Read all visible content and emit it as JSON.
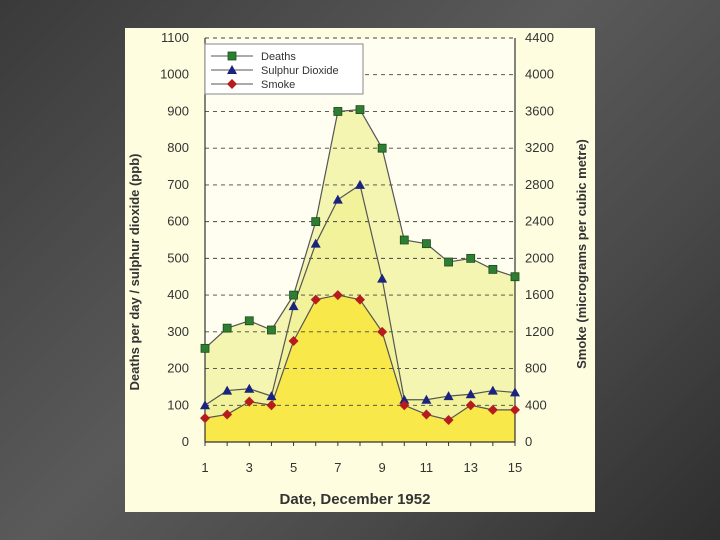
{
  "chart_data": {
    "type": "line",
    "title": "",
    "xlabel": "Date, December 1952",
    "ylabel_left": "Deaths per day / sulphur dioxide (ppb)",
    "ylabel_right": "Smoke (micrograms per cubic metre)",
    "x": [
      1,
      2,
      3,
      4,
      5,
      6,
      7,
      8,
      9,
      10,
      11,
      12,
      13,
      14,
      15
    ],
    "x_tick_labels": [
      "1",
      "3",
      "5",
      "7",
      "9",
      "11",
      "13",
      "15"
    ],
    "x_tick_values": [
      1,
      3,
      5,
      7,
      9,
      11,
      13,
      15
    ],
    "xlim": [
      1,
      15
    ],
    "ylim_left": [
      0,
      1100
    ],
    "ylim_right": [
      0,
      4400
    ],
    "left_ticks": [
      0,
      100,
      200,
      300,
      400,
      500,
      600,
      700,
      800,
      900,
      1000,
      1100
    ],
    "right_ticks": [
      0,
      400,
      800,
      1200,
      1600,
      2000,
      2400,
      2800,
      3200,
      3600,
      4000,
      4400
    ],
    "left_tick_labels": [
      "0",
      "100",
      "200",
      "300",
      "400",
      "500",
      "600",
      "700",
      "800",
      "900",
      "1000",
      "1100"
    ],
    "right_tick_labels": [
      "0",
      "400",
      "800",
      "1200",
      "1600",
      "2000",
      "2400",
      "2800",
      "3200",
      "3600",
      "4000",
      "4400"
    ],
    "grid": true,
    "legend_position": "top-left",
    "series": [
      {
        "name": "Deaths",
        "axis": "left",
        "marker": "square",
        "color": "#2e7d32",
        "fill": "#f4f5b0",
        "values": [
          255,
          310,
          330,
          305,
          400,
          600,
          900,
          905,
          800,
          550,
          540,
          490,
          500,
          470,
          450
        ]
      },
      {
        "name": "Sulphur Dioxide",
        "axis": "left",
        "marker": "triangle",
        "color": "#1a237e",
        "fill": "#f2f29a",
        "values": [
          100,
          140,
          145,
          125,
          370,
          540,
          660,
          700,
          445,
          115,
          115,
          125,
          130,
          140,
          135
        ]
      },
      {
        "name": "Smoke",
        "axis": "right",
        "marker": "diamond",
        "color": "#b71c1c",
        "fill": "#f8e84a",
        "values": [
          260,
          300,
          440,
          400,
          1100,
          1550,
          1600,
          1550,
          1200,
          400,
          300,
          240,
          400,
          350,
          350
        ]
      }
    ]
  },
  "colors": {
    "panel_bg": "#fffde0",
    "plot_bg": "#fffef0",
    "axis": "#333333",
    "grid": "#444444",
    "text": "#333333"
  }
}
